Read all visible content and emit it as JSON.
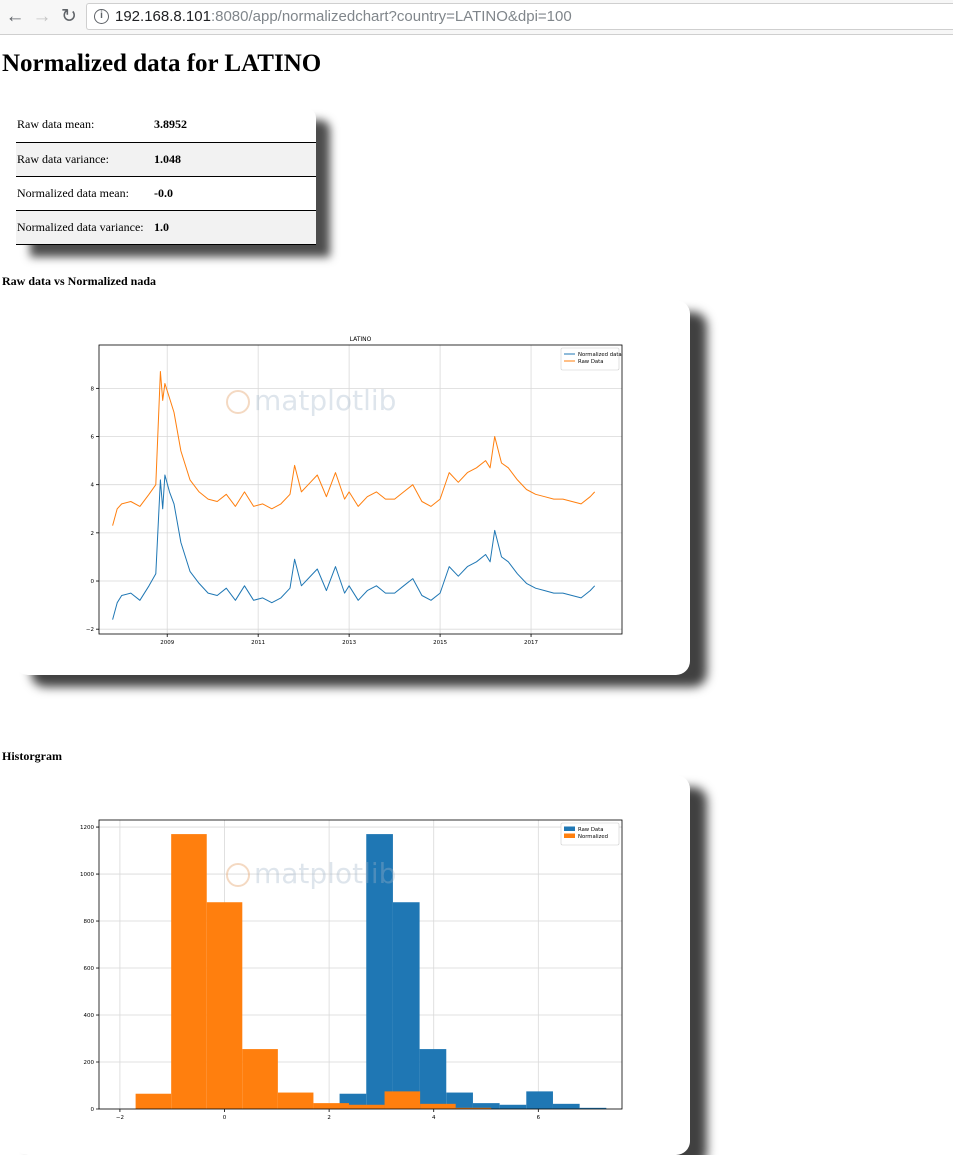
{
  "browser": {
    "url_host": "192.168.8.101",
    "url_rest": ":8080/app/normalizedchart?country=LATINO&dpi=100"
  },
  "page": {
    "title": "Normalized data for LATINO",
    "stats": [
      {
        "label": "Raw data mean:",
        "value": "3.8952"
      },
      {
        "label": "Raw data variance:",
        "value": "1.048"
      },
      {
        "label": "Normalized data mean:",
        "value": "-0.0"
      },
      {
        "label": "Normalized data variance:",
        "value": "1.0"
      }
    ],
    "line_section_label": "Raw data vs Normalized nada",
    "hist_section_label": "Historgram",
    "watermark": "matplotlib"
  },
  "colors": {
    "blue": "#1f77b4",
    "orange": "#ff7f0e"
  },
  "chart_data": [
    {
      "type": "line",
      "title": "LATINO",
      "xlabel": "",
      "ylabel": "",
      "xlim": [
        2007.5,
        2019.0
      ],
      "ylim": [
        -2.2,
        9.8
      ],
      "x_ticks": [
        2009,
        2011,
        2013,
        2015,
        2017
      ],
      "y_ticks": [
        -2,
        0,
        2,
        4,
        6,
        8
      ],
      "grid": true,
      "legend_position": "upper right",
      "series": [
        {
          "name": "Normalized data",
          "color": "#1f77b4",
          "x": [
            2007.8,
            2007.9,
            2008.0,
            2008.2,
            2008.4,
            2008.6,
            2008.75,
            2008.85,
            2008.9,
            2008.95,
            2009.05,
            2009.15,
            2009.3,
            2009.5,
            2009.7,
            2009.9,
            2010.1,
            2010.3,
            2010.5,
            2010.7,
            2010.9,
            2011.1,
            2011.3,
            2011.5,
            2011.7,
            2011.8,
            2011.95,
            2012.1,
            2012.3,
            2012.5,
            2012.7,
            2012.9,
            2013.0,
            2013.2,
            2013.4,
            2013.6,
            2013.8,
            2014.0,
            2014.2,
            2014.4,
            2014.6,
            2014.8,
            2015.0,
            2015.2,
            2015.4,
            2015.6,
            2015.8,
            2016.0,
            2016.1,
            2016.2,
            2016.35,
            2016.5,
            2016.7,
            2016.9,
            2017.1,
            2017.3,
            2017.5,
            2017.7,
            2017.9,
            2018.1,
            2018.3,
            2018.4
          ],
          "y": [
            -1.6,
            -0.9,
            -0.6,
            -0.5,
            -0.8,
            -0.2,
            0.3,
            4.2,
            3.0,
            4.4,
            3.7,
            3.2,
            1.6,
            0.4,
            -0.1,
            -0.5,
            -0.6,
            -0.3,
            -0.8,
            -0.2,
            -0.8,
            -0.7,
            -0.9,
            -0.7,
            -0.3,
            0.9,
            -0.2,
            0.1,
            0.5,
            -0.4,
            0.6,
            -0.5,
            -0.2,
            -0.8,
            -0.4,
            -0.2,
            -0.5,
            -0.5,
            -0.2,
            0.1,
            -0.6,
            -0.8,
            -0.5,
            0.6,
            0.2,
            0.6,
            0.8,
            1.1,
            0.8,
            2.1,
            1.0,
            0.8,
            0.3,
            -0.1,
            -0.3,
            -0.4,
            -0.5,
            -0.5,
            -0.6,
            -0.7,
            -0.4,
            -0.2
          ]
        },
        {
          "name": "Raw Data",
          "color": "#ff7f0e",
          "x": [
            2007.8,
            2007.9,
            2008.0,
            2008.2,
            2008.4,
            2008.6,
            2008.75,
            2008.85,
            2008.9,
            2008.95,
            2009.05,
            2009.15,
            2009.3,
            2009.5,
            2009.7,
            2009.9,
            2010.1,
            2010.3,
            2010.5,
            2010.7,
            2010.9,
            2011.1,
            2011.3,
            2011.5,
            2011.7,
            2011.8,
            2011.95,
            2012.1,
            2012.3,
            2012.5,
            2012.7,
            2012.9,
            2013.0,
            2013.2,
            2013.4,
            2013.6,
            2013.8,
            2014.0,
            2014.2,
            2014.4,
            2014.6,
            2014.8,
            2015.0,
            2015.2,
            2015.4,
            2015.6,
            2015.8,
            2016.0,
            2016.1,
            2016.2,
            2016.35,
            2016.5,
            2016.7,
            2016.9,
            2017.1,
            2017.3,
            2017.5,
            2017.7,
            2017.9,
            2018.1,
            2018.3,
            2018.4
          ],
          "y": [
            2.3,
            3.0,
            3.2,
            3.3,
            3.1,
            3.6,
            4.0,
            8.7,
            7.5,
            8.2,
            7.6,
            7.0,
            5.4,
            4.2,
            3.7,
            3.4,
            3.3,
            3.6,
            3.1,
            3.7,
            3.1,
            3.2,
            3.0,
            3.2,
            3.6,
            4.8,
            3.7,
            4.0,
            4.4,
            3.5,
            4.5,
            3.4,
            3.7,
            3.1,
            3.5,
            3.7,
            3.4,
            3.4,
            3.7,
            4.0,
            3.3,
            3.1,
            3.4,
            4.5,
            4.1,
            4.5,
            4.7,
            5.0,
            4.7,
            6.0,
            4.9,
            4.7,
            4.2,
            3.8,
            3.6,
            3.5,
            3.4,
            3.4,
            3.3,
            3.2,
            3.5,
            3.7
          ]
        }
      ]
    },
    {
      "type": "bar",
      "title": "",
      "xlabel": "",
      "ylabel": "",
      "xlim": [
        -2.4,
        7.6
      ],
      "ylim": [
        0,
        1230
      ],
      "x_ticks": [
        -2,
        0,
        2,
        4,
        6
      ],
      "y_ticks": [
        0,
        200,
        400,
        600,
        800,
        1000,
        1200
      ],
      "grid": true,
      "legend_position": "upper right",
      "series": [
        {
          "name": "Raw Data",
          "color": "#1f77b4",
          "bin_edges": [
            2.2,
            2.71,
            3.22,
            3.73,
            4.24,
            4.75,
            5.26,
            5.77,
            6.28,
            6.79,
            7.3
          ],
          "values": [
            65,
            1170,
            880,
            255,
            70,
            25,
            18,
            75,
            22,
            5
          ]
        },
        {
          "name": "Normalized",
          "color": "#ff7f0e",
          "bin_edges": [
            -1.7,
            -1.02,
            -0.34,
            0.34,
            1.02,
            1.7,
            2.38,
            3.06,
            3.74,
            4.42,
            5.1
          ],
          "values": [
            65,
            1170,
            880,
            255,
            70,
            25,
            18,
            75,
            22,
            5
          ]
        }
      ]
    }
  ]
}
